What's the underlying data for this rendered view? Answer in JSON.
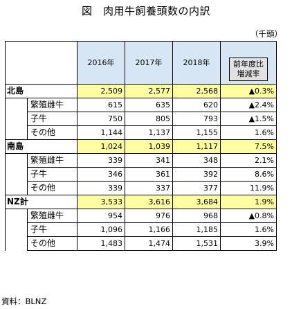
{
  "title": "図　肉用牛飼養頭数の内訳",
  "unit": "（千頭）",
  "source": "資料：BLNZ",
  "columns": [
    "2016年",
    "2017年",
    "2018年"
  ],
  "change_header": [
    "前年度比",
    "増減率"
  ],
  "groups": [
    {
      "label": "北島",
      "total": [
        "2,509",
        "2,577",
        "2,568",
        "▲0.3%"
      ],
      "rows": [
        {
          "label": "繁殖雌牛",
          "values": [
            "615",
            "635",
            "620",
            "▲2.4%"
          ]
        },
        {
          "label": "子牛",
          "values": [
            "750",
            "805",
            "793",
            "▲1.5%"
          ]
        },
        {
          "label": "その他",
          "values": [
            "1,144",
            "1,137",
            "1,155",
            "1.6%"
          ]
        }
      ]
    },
    {
      "label": "南島",
      "total": [
        "1,024",
        "1,039",
        "1,117",
        "7.5%"
      ],
      "rows": [
        {
          "label": "繁殖雌牛",
          "values": [
            "339",
            "341",
            "348",
            "2.1%"
          ]
        },
        {
          "label": "子牛",
          "values": [
            "346",
            "361",
            "392",
            "8.6%"
          ]
        },
        {
          "label": "その他",
          "values": [
            "339",
            "337",
            "377",
            "11.9%"
          ]
        }
      ]
    },
    {
      "label": "NZ計",
      "total": [
        "3,533",
        "3,616",
        "3,684",
        "1.9%"
      ],
      "rows": [
        {
          "label": "繁殖雌牛",
          "values": [
            "954",
            "976",
            "968",
            "▲0.8%"
          ]
        },
        {
          "label": "子牛",
          "values": [
            "1,096",
            "1,166",
            "1,185",
            "1.6%"
          ]
        },
        {
          "label": "その他",
          "values": [
            "1,483",
            "1,474",
            "1,531",
            "3.9%"
          ]
        }
      ]
    }
  ]
}
